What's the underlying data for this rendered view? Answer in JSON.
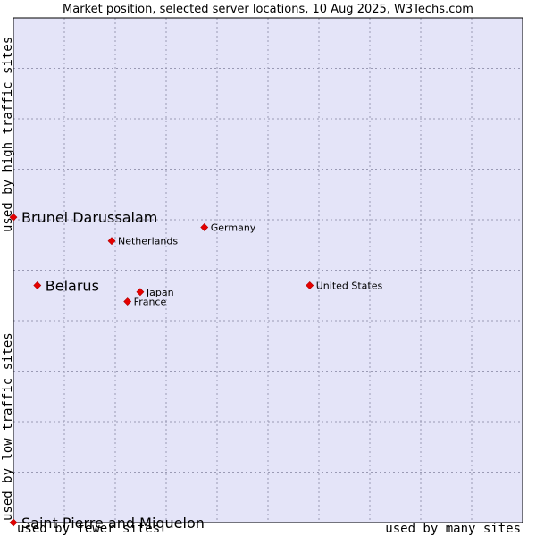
{
  "chart_data": {
    "type": "scatter",
    "title": "Market position, selected server locations, 10 Aug 2025, W3Techs.com",
    "xlabel_left": "used by fewer sites",
    "xlabel_right": "used by many sites",
    "ylabel_top": "used by high traffic sites",
    "ylabel_bottom": "used by low traffic sites",
    "grid": true,
    "xlim": [
      0,
      10
    ],
    "ylim": [
      0,
      10
    ],
    "points": [
      {
        "label": "Brunei Darussalam",
        "x": 0.0,
        "y": 6.05,
        "highlight": true
      },
      {
        "label": "Germany",
        "x": 3.75,
        "y": 5.85,
        "highlight": false
      },
      {
        "label": "Netherlands",
        "x": 1.93,
        "y": 5.58,
        "highlight": false
      },
      {
        "label": "Belarus",
        "x": 0.47,
        "y": 4.7,
        "highlight": true
      },
      {
        "label": "United States",
        "x": 5.82,
        "y": 4.7,
        "highlight": false
      },
      {
        "label": "Japan",
        "x": 2.49,
        "y": 4.57,
        "highlight": false
      },
      {
        "label": "France",
        "x": 2.24,
        "y": 4.38,
        "highlight": false
      },
      {
        "label": "Saint Pierre and Miquelon",
        "x": 0.0,
        "y": 0.0,
        "highlight": true
      }
    ]
  },
  "colors": {
    "plot_bg": "#e4e4f8",
    "grid": "#9a9ab4",
    "marker": "#e60000",
    "frame": "#000000"
  }
}
